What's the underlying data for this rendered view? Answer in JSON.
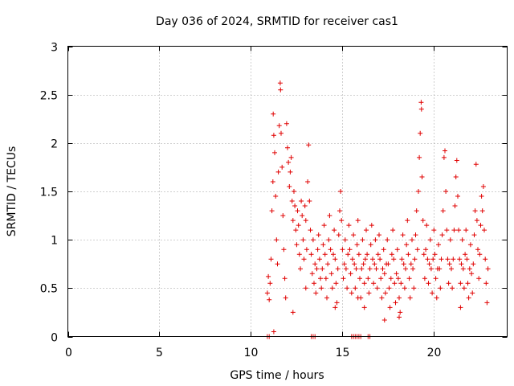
{
  "chart_data": {
    "type": "scatter",
    "title": "Day 036 of 2024, SRMTID for receiver cas1",
    "xlabel": "GPS time / hours",
    "ylabel": "SRMTID / TECUs",
    "xlim": [
      0,
      24
    ],
    "ylim": [
      0,
      3
    ],
    "xticks": [
      0,
      5,
      10,
      15,
      20
    ],
    "xtick_labels": [
      "0",
      "5",
      "10",
      "15",
      "20"
    ],
    "yticks": [
      0,
      0.5,
      1,
      1.5,
      2,
      2.5,
      3
    ],
    "ytick_labels": [
      "0",
      "0.5",
      "1",
      "1.5",
      "2",
      "2.5",
      "3"
    ],
    "grid": true,
    "marker": "plus",
    "series": [
      {
        "name": "SRMTID",
        "color": "#e00000",
        "points": [
          [
            10.9,
            0.45
          ],
          [
            10.95,
            0.62
          ],
          [
            11.0,
            0.38
          ],
          [
            11.05,
            0.55
          ],
          [
            11.1,
            0.8
          ],
          [
            11.15,
            1.3
          ],
          [
            11.2,
            1.6
          ],
          [
            11.22,
            2.3
          ],
          [
            11.25,
            2.08
          ],
          [
            11.3,
            1.9
          ],
          [
            11.35,
            1.45
          ],
          [
            11.4,
            1.0
          ],
          [
            11.45,
            0.75
          ],
          [
            11.5,
            1.7
          ],
          [
            11.55,
            2.18
          ],
          [
            11.6,
            2.62
          ],
          [
            11.62,
            2.55
          ],
          [
            11.65,
            2.1
          ],
          [
            11.7,
            1.75
          ],
          [
            11.75,
            1.25
          ],
          [
            11.8,
            0.9
          ],
          [
            11.85,
            0.6
          ],
          [
            11.9,
            0.4
          ],
          [
            11.95,
            2.2
          ],
          [
            12.0,
            1.95
          ],
          [
            12.05,
            1.8
          ],
          [
            12.1,
            1.55
          ],
          [
            12.15,
            1.7
          ],
          [
            12.2,
            1.85
          ],
          [
            12.25,
            1.4
          ],
          [
            12.3,
            1.2
          ],
          [
            12.35,
            1.5
          ],
          [
            12.4,
            1.35
          ],
          [
            12.45,
            1.1
          ],
          [
            12.5,
            0.95
          ],
          [
            12.55,
            1.3
          ],
          [
            12.6,
            1.15
          ],
          [
            12.65,
            0.85
          ],
          [
            12.7,
            0.7
          ],
          [
            12.75,
            1.4
          ],
          [
            12.8,
            1.25
          ],
          [
            12.85,
            1.0
          ],
          [
            12.9,
            0.8
          ],
          [
            12.95,
            1.35
          ],
          [
            13.0,
            1.2
          ],
          [
            13.05,
            0.9
          ],
          [
            13.1,
            1.6
          ],
          [
            13.15,
            1.98
          ],
          [
            13.2,
            1.4
          ],
          [
            13.25,
            1.1
          ],
          [
            13.3,
            0.85
          ],
          [
            13.35,
            0.65
          ],
          [
            13.4,
            1.0
          ],
          [
            13.45,
            0.55
          ],
          [
            13.5,
            0.75
          ],
          [
            13.55,
            0.45
          ],
          [
            13.6,
            0.7
          ],
          [
            13.65,
            0.9
          ],
          [
            13.7,
            1.05
          ],
          [
            13.75,
            0.8
          ],
          [
            13.8,
            0.6
          ],
          [
            13.85,
            0.5
          ],
          [
            13.9,
            0.7
          ],
          [
            13.95,
            0.95
          ],
          [
            14.0,
            1.15
          ],
          [
            14.05,
            0.85
          ],
          [
            14.1,
            0.6
          ],
          [
            14.15,
            0.4
          ],
          [
            14.2,
            0.75
          ],
          [
            14.25,
            1.0
          ],
          [
            14.3,
            1.25
          ],
          [
            14.35,
            0.9
          ],
          [
            14.4,
            0.65
          ],
          [
            14.45,
            0.5
          ],
          [
            14.5,
            0.85
          ],
          [
            14.55,
            1.1
          ],
          [
            14.6,
            0.8
          ],
          [
            14.65,
            0.55
          ],
          [
            14.7,
            0.35
          ],
          [
            14.75,
            0.7
          ],
          [
            14.8,
            1.05
          ],
          [
            14.85,
            1.3
          ],
          [
            14.9,
            1.5
          ],
          [
            14.95,
            1.2
          ],
          [
            15.0,
            0.9
          ],
          [
            15.05,
            0.6
          ],
          [
            15.1,
            0.75
          ],
          [
            15.15,
            1.0
          ],
          [
            15.2,
            0.7
          ],
          [
            15.25,
            0.5
          ],
          [
            15.3,
            0.85
          ],
          [
            15.35,
            1.15
          ],
          [
            15.4,
            0.9
          ],
          [
            15.45,
            0.65
          ],
          [
            15.5,
            0.45
          ],
          [
            15.55,
            0.8
          ],
          [
            15.6,
            1.05
          ],
          [
            15.65,
            0.75
          ],
          [
            15.7,
            0.5
          ],
          [
            15.75,
            0.7
          ],
          [
            15.8,
            0.95
          ],
          [
            15.85,
            1.2
          ],
          [
            15.9,
            0.85
          ],
          [
            15.95,
            0.6
          ],
          [
            16.0,
            0.4
          ],
          [
            16.05,
            0.7
          ],
          [
            16.1,
            1.0
          ],
          [
            16.15,
            0.75
          ],
          [
            16.2,
            0.55
          ],
          [
            16.25,
            0.8
          ],
          [
            16.3,
            1.1
          ],
          [
            16.35,
            0.85
          ],
          [
            16.4,
            0.6
          ],
          [
            16.45,
            0.45
          ],
          [
            16.5,
            0.7
          ],
          [
            16.55,
            0.95
          ],
          [
            16.6,
            1.15
          ],
          [
            16.65,
            0.8
          ],
          [
            16.7,
            0.55
          ],
          [
            16.75,
            0.75
          ],
          [
            16.8,
            1.0
          ],
          [
            16.85,
            0.7
          ],
          [
            16.9,
            0.5
          ],
          [
            16.95,
            0.85
          ],
          [
            17.0,
            1.05
          ],
          [
            17.05,
            0.8
          ],
          [
            17.1,
            0.6
          ],
          [
            17.15,
            0.4
          ],
          [
            17.2,
            0.7
          ],
          [
            17.25,
            0.9
          ],
          [
            17.3,
            0.65
          ],
          [
            17.35,
            0.45
          ],
          [
            17.4,
            0.75
          ],
          [
            17.45,
            1.0
          ],
          [
            17.5,
            0.75
          ],
          [
            17.55,
            0.5
          ],
          [
            17.6,
            0.3
          ],
          [
            17.65,
            0.6
          ],
          [
            17.7,
            0.85
          ],
          [
            17.75,
            1.1
          ],
          [
            17.8,
            0.8
          ],
          [
            17.85,
            0.55
          ],
          [
            17.9,
            0.35
          ],
          [
            17.95,
            0.65
          ],
          [
            18.0,
            0.9
          ],
          [
            18.05,
            0.6
          ],
          [
            18.1,
            0.4
          ],
          [
            18.15,
            0.25
          ],
          [
            18.2,
            0.55
          ],
          [
            18.25,
            0.8
          ],
          [
            18.3,
            1.05
          ],
          [
            18.35,
            0.75
          ],
          [
            18.4,
            0.5
          ],
          [
            18.45,
            0.7
          ],
          [
            18.5,
            0.95
          ],
          [
            18.55,
            1.2
          ],
          [
            18.6,
            0.85
          ],
          [
            18.65,
            0.6
          ],
          [
            18.7,
            0.4
          ],
          [
            18.75,
            0.75
          ],
          [
            18.8,
            1.0
          ],
          [
            18.85,
            0.7
          ],
          [
            18.9,
            0.5
          ],
          [
            18.95,
            0.8
          ],
          [
            19.0,
            1.05
          ],
          [
            19.05,
            1.3
          ],
          [
            19.1,
            0.9
          ],
          [
            19.15,
            1.5
          ],
          [
            19.2,
            1.85
          ],
          [
            19.25,
            2.1
          ],
          [
            19.3,
            2.42
          ],
          [
            19.32,
            2.35
          ],
          [
            19.35,
            1.65
          ],
          [
            19.4,
            1.2
          ],
          [
            19.45,
            0.85
          ],
          [
            19.5,
            0.6
          ],
          [
            19.55,
            0.9
          ],
          [
            19.6,
            1.15
          ],
          [
            19.65,
            0.8
          ],
          [
            19.7,
            0.55
          ],
          [
            19.75,
            0.75
          ],
          [
            19.8,
            1.0
          ],
          [
            19.85,
            0.7
          ],
          [
            19.9,
            0.45
          ],
          [
            19.95,
            0.8
          ],
          [
            20.0,
            1.1
          ],
          [
            20.05,
            0.85
          ],
          [
            20.1,
            0.6
          ],
          [
            20.15,
            0.4
          ],
          [
            20.2,
            0.7
          ],
          [
            20.25,
            0.95
          ],
          [
            20.3,
            0.7
          ],
          [
            20.35,
            0.5
          ],
          [
            20.4,
            0.8
          ],
          [
            20.45,
            1.05
          ],
          [
            20.5,
            1.3
          ],
          [
            20.55,
            1.85
          ],
          [
            20.6,
            1.92
          ],
          [
            20.65,
            1.5
          ],
          [
            20.7,
            1.1
          ],
          [
            20.75,
            0.8
          ],
          [
            20.8,
            0.55
          ],
          [
            20.85,
            0.75
          ],
          [
            20.9,
            1.0
          ],
          [
            20.95,
            0.7
          ],
          [
            21.0,
            0.5
          ],
          [
            21.05,
            0.8
          ],
          [
            21.1,
            1.1
          ],
          [
            21.15,
            1.35
          ],
          [
            21.2,
            1.65
          ],
          [
            21.25,
            1.82
          ],
          [
            21.3,
            1.45
          ],
          [
            21.35,
            1.1
          ],
          [
            21.4,
            0.8
          ],
          [
            21.45,
            0.55
          ],
          [
            21.5,
            0.75
          ],
          [
            21.55,
            1.0
          ],
          [
            21.6,
            0.7
          ],
          [
            21.65,
            0.5
          ],
          [
            21.7,
            0.85
          ],
          [
            21.75,
            1.1
          ],
          [
            21.8,
            0.8
          ],
          [
            21.85,
            0.55
          ],
          [
            21.9,
            0.4
          ],
          [
            21.95,
            0.7
          ],
          [
            22.0,
            0.95
          ],
          [
            22.05,
            0.65
          ],
          [
            22.1,
            0.45
          ],
          [
            22.15,
            0.75
          ],
          [
            22.2,
            1.05
          ],
          [
            22.25,
            1.3
          ],
          [
            22.3,
            1.78
          ],
          [
            22.35,
            1.2
          ],
          [
            22.4,
            0.9
          ],
          [
            22.45,
            0.6
          ],
          [
            22.5,
            0.85
          ],
          [
            22.55,
            1.15
          ],
          [
            22.6,
            1.45
          ],
          [
            22.65,
            1.3
          ],
          [
            22.7,
            1.55
          ],
          [
            22.75,
            1.1
          ],
          [
            22.8,
            0.8
          ],
          [
            22.85,
            0.55
          ],
          [
            22.9,
            0.35
          ],
          [
            22.95,
            0.7
          ],
          [
            12.3,
            0.25
          ],
          [
            11.25,
            0.05
          ],
          [
            14.6,
            0.3
          ],
          [
            18.1,
            0.2
          ],
          [
            17.3,
            0.17
          ],
          [
            21.45,
            0.3
          ],
          [
            15.85,
            0.4
          ],
          [
            13.0,
            0.5
          ],
          [
            16.2,
            0.3
          ]
        ]
      }
    ],
    "zero_points": [
      10.9,
      11.0,
      13.3,
      13.4,
      13.5,
      15.5,
      15.6,
      15.7,
      15.8,
      15.9,
      16.0,
      16.4,
      16.5
    ]
  }
}
